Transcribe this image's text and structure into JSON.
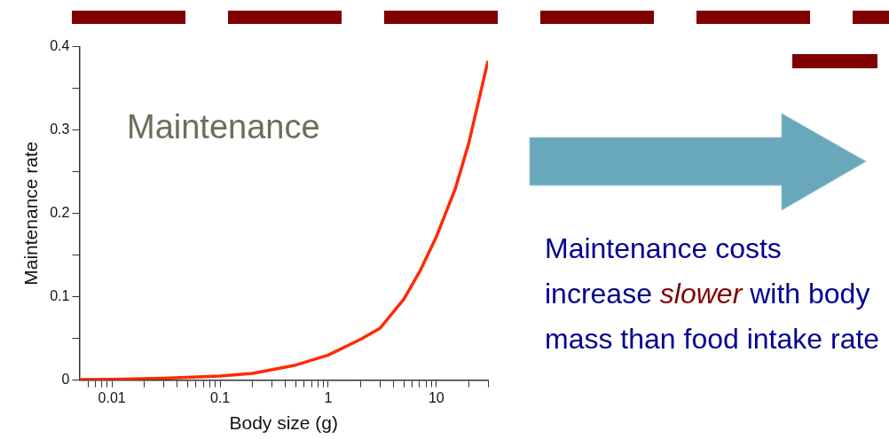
{
  "chart_data": {
    "type": "line",
    "xlabel": "Body size (g)",
    "ylabel": "Maintenance rate",
    "log": "x",
    "grid": false,
    "legend": false,
    "marker": "none",
    "line_style": "solid",
    "x": [
      0.005,
      0.01,
      0.03,
      0.1,
      0.2,
      0.5,
      1,
      2,
      3,
      5,
      7,
      10,
      15,
      20,
      30
    ],
    "series": [
      {
        "color": "#ff2a00",
        "values": [
          0.0006,
          0.001,
          0.0023,
          0.005,
          0.008,
          0.018,
          0.03,
          0.049,
          0.062,
          0.097,
          0.13,
          0.172,
          0.23,
          0.285,
          0.383
        ]
      }
    ],
    "xlim": [
      0.005,
      30
    ],
    "xticks": [
      {
        "value": 0.006,
        "label": null
      },
      {
        "value": 0.007,
        "label": null
      },
      {
        "value": 0.008,
        "label": null
      },
      {
        "value": 0.009,
        "label": null
      },
      0.01,
      {
        "value": 0.02,
        "label": null
      },
      {
        "value": 0.03,
        "label": null
      },
      {
        "value": 0.04,
        "label": null
      },
      {
        "value": 0.05,
        "label": null
      },
      {
        "value": 0.06,
        "label": null
      },
      {
        "value": 0.07,
        "label": null
      },
      {
        "value": 0.08,
        "label": null
      },
      {
        "value": 0.09,
        "label": null
      },
      0.1,
      {
        "value": 0.2,
        "label": null
      },
      {
        "value": 0.3,
        "label": null
      },
      {
        "value": 0.4,
        "label": null
      },
      {
        "value": 0.5,
        "label": null
      },
      {
        "value": 0.6,
        "label": null
      },
      {
        "value": 0.7,
        "label": null
      },
      {
        "value": 0.8,
        "label": null
      },
      {
        "value": 0.9,
        "label": null
      },
      1,
      {
        "value": 2,
        "label": null
      },
      {
        "value": 3,
        "label": null
      },
      {
        "value": 4,
        "label": null
      },
      {
        "value": 5,
        "label": null
      },
      {
        "value": 6,
        "label": null
      },
      {
        "value": 7,
        "label": null
      },
      {
        "value": 8,
        "label": null
      },
      {
        "value": 9,
        "label": null
      },
      10,
      {
        "value": 20,
        "label": null
      },
      {
        "value": 30,
        "label": null
      }
    ],
    "ylim": [
      0,
      0.4
    ],
    "yticks": [
      0,
      {
        "value": 0.05,
        "label": null
      },
      0.1,
      {
        "value": 0.15,
        "label": null
      },
      0.2,
      {
        "value": 0.25,
        "label": null
      },
      0.3,
      {
        "value": 0.35,
        "label": null
      },
      0.4
    ],
    "annotations": [
      "Maintenance",
      "Maintenance costs increase ",
      "slower",
      " with body mass than food intake rate"
    ]
  }
}
